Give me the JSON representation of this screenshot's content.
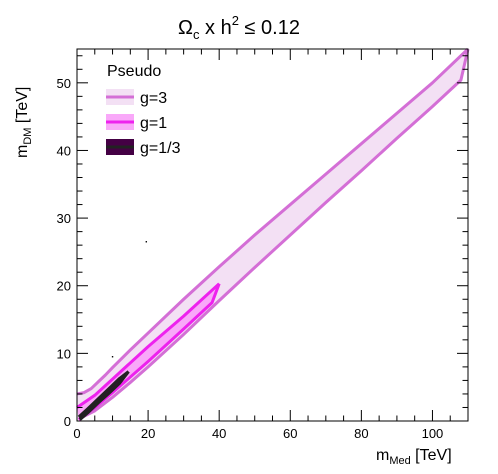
{
  "chart_data": {
    "type": "area",
    "title": {
      "main": "Ω",
      "sub_c": "c",
      "mid": " x h",
      "sup_2": "2",
      "tail": " ≤ 0.12"
    },
    "xlabel": {
      "main": "m",
      "sub": "Med",
      "unit": " [TeV]"
    },
    "ylabel": {
      "main": "m",
      "sub": "DM",
      "unit": " [TeV]"
    },
    "xlim": [
      0,
      110
    ],
    "ylim": [
      0,
      55
    ],
    "x_ticks": [
      0,
      20,
      40,
      60,
      80,
      100
    ],
    "y_ticks": [
      0,
      10,
      20,
      30,
      40,
      50
    ],
    "grid": false,
    "legend": {
      "title": "Pseudo",
      "placement": "top-left",
      "entries": [
        "g=3",
        "g=1",
        "g=1/3"
      ]
    },
    "series": [
      {
        "name": "g=3",
        "color": "#d46fd6",
        "fill": "#f3e0f4",
        "upper": [
          [
            0,
            4.0
          ],
          [
            2,
            4.2
          ],
          [
            4,
            4.8
          ],
          [
            6,
            5.8
          ],
          [
            8,
            6.8
          ],
          [
            10,
            7.9
          ],
          [
            15,
            10.5
          ],
          [
            20,
            13.0
          ],
          [
            30,
            18.0
          ],
          [
            40,
            22.8
          ],
          [
            50,
            27.5
          ],
          [
            60,
            32.0
          ],
          [
            70,
            36.5
          ],
          [
            80,
            41.0
          ],
          [
            90,
            45.5
          ],
          [
            100,
            50.0
          ],
          [
            110,
            55.0
          ]
        ],
        "lower": [
          [
            0.5,
            0.3
          ],
          [
            5,
            1.5
          ],
          [
            10,
            3.5
          ],
          [
            15,
            5.7
          ],
          [
            20,
            8.0
          ],
          [
            30,
            12.8
          ],
          [
            40,
            17.8
          ],
          [
            50,
            22.7
          ],
          [
            60,
            27.5
          ],
          [
            70,
            32.3
          ],
          [
            80,
            37.0
          ],
          [
            90,
            41.8
          ],
          [
            100,
            46.5
          ],
          [
            108,
            50.4
          ],
          [
            110,
            55.0
          ]
        ]
      },
      {
        "name": "g=1",
        "color": "#ee22ee",
        "fill": "#f9a8f9",
        "upper": [
          [
            0,
            2.0
          ],
          [
            5,
            3.8
          ],
          [
            10,
            6.2
          ],
          [
            20,
            11.0
          ],
          [
            30,
            15.5
          ],
          [
            40,
            20.3
          ]
        ],
        "lower": [
          [
            0.5,
            0.2
          ],
          [
            5,
            2.0
          ],
          [
            10,
            4.2
          ],
          [
            20,
            8.8
          ],
          [
            30,
            13.6
          ],
          [
            38,
            17.5
          ],
          [
            40,
            20.3
          ]
        ]
      },
      {
        "name": "g=1/3",
        "color": "#222222",
        "fill": "#440044",
        "upper": [
          [
            0.5,
            0.6
          ],
          [
            3,
            1.8
          ],
          [
            6,
            3.3
          ],
          [
            9,
            4.8
          ],
          [
            12,
            6.3
          ],
          [
            14.5,
            7.3
          ]
        ],
        "lower": [
          [
            0.8,
            0.2
          ],
          [
            3,
            1.2
          ],
          [
            6,
            2.7
          ],
          [
            9,
            4.1
          ],
          [
            12,
            5.6
          ],
          [
            14.5,
            7.3
          ]
        ]
      }
    ],
    "stray_points": [
      [
        19.5,
        26.5
      ],
      [
        10,
        9.5
      ]
    ]
  }
}
